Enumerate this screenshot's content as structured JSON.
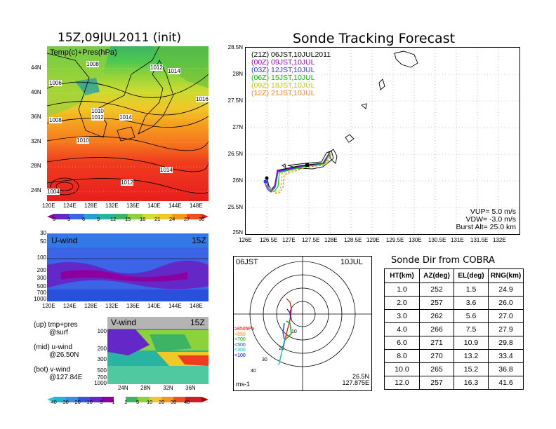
{
  "left_title": "15Z,09JUL2011 (init)",
  "main_title": "Sonde Tracking Forecast",
  "temp_panel": {
    "label": "Temp(c)+Pres(hPa)",
    "lat_ticks": [
      "44N",
      "40N",
      "36N",
      "32N",
      "28N",
      "24N"
    ],
    "lon_ticks": [
      "120E",
      "124E",
      "128E",
      "132E",
      "136E",
      "140E",
      "144E",
      "148E"
    ],
    "isobars": [
      "1008",
      "1006",
      "1012",
      "1014",
      "1016",
      "1010",
      "1012",
      "1008",
      "1010",
      "1014",
      "1014",
      "1012",
      "1004"
    ],
    "colorbar": [
      "0",
      "3",
      "6",
      "9",
      "12",
      "15",
      "18",
      "21",
      "24",
      "27",
      "30"
    ]
  },
  "u_panel": {
    "label": "U-wind",
    "time": "15Z",
    "p_ticks": [
      "30",
      "50",
      "100",
      "200",
      "300",
      "500",
      "700",
      "1000"
    ],
    "lon_ticks": [
      "120E",
      "124E",
      "128E",
      "132E",
      "136E",
      "140E",
      "144E",
      "148E"
    ]
  },
  "v_panel": {
    "label": "V-wind",
    "time": "15Z",
    "p_ticks": [
      "100",
      "200",
      "300",
      "500",
      "700",
      "1000"
    ],
    "lat_ticks": [
      "24N",
      "28N",
      "32N",
      "36N"
    ],
    "colorbar": [
      "-40",
      "-30",
      "-20",
      "-10",
      "-5",
      "-1",
      "1",
      "5",
      "10",
      "20",
      "30",
      "40"
    ]
  },
  "legend_notes": [
    {
      "line1": "(up) tmp+pres",
      "line2": "@surf"
    },
    {
      "line1": "(mid) u-wind",
      "line2": "@26.50N"
    },
    {
      "line1": "(bot) v-wind",
      "line2": "@127.84E"
    }
  ],
  "track_panel": {
    "legend": [
      {
        "code": "(21Z)",
        "text": "06JST,10JUL2011",
        "color": "#000000"
      },
      {
        "code": "(00Z)",
        "text": "09JST,10JUL",
        "color": "#a000c8"
      },
      {
        "code": "(03Z)",
        "text": "12JST,10JUL",
        "color": "#1e3cff"
      },
      {
        "code": "(06Z)",
        "text": "15JST,10JUL",
        "color": "#00c800"
      },
      {
        "code": "(09Z)",
        "text": "18JST,10JUL",
        "color": "#c8c800"
      },
      {
        "code": "(12Z)",
        "text": "21JST,10JUL",
        "color": "#f08228"
      }
    ],
    "params": [
      "VUP= 5.0 m/s",
      "VDW= -3.0 m/s",
      "Burst Alt= 25.0 km"
    ],
    "lat_ticks": [
      "28.5N",
      "28N",
      "27.5N",
      "27N",
      "26.5N",
      "26N",
      "25.5N",
      "25N"
    ],
    "lon_ticks": [
      "126E",
      "126.5E",
      "127E",
      "127.5E",
      "128E",
      "128.5E",
      "129E",
      "129.5E",
      "130E",
      "130.5E",
      "131E",
      "131.5E",
      "132E"
    ]
  },
  "hodo_panel": {
    "time": "06JST",
    "date": "10JUL",
    "levels": [
      "≥850hPa",
      "<850",
      "<700",
      "<500",
      "<300",
      "<100"
    ],
    "level_colors": [
      "#ff0000",
      "#ff8c00",
      "#00b400",
      "#1e3cff",
      "#00c8c8",
      "#0000c8"
    ],
    "units": "ms-1",
    "loc1": "26.5N",
    "loc2": "127.875E",
    "ring_labels": [
      "10",
      "20",
      "30",
      "40"
    ]
  },
  "chart_data": {
    "type": "table",
    "title": "Sonde Dir from COBRA",
    "columns": [
      "HT(km)",
      "AZ(deg)",
      "EL(deg)",
      "RNG(km)"
    ],
    "rows": [
      [
        "1.0",
        "252",
        "1.5",
        "24.9"
      ],
      [
        "2.0",
        "257",
        "3.6",
        "26.0"
      ],
      [
        "3.0",
        "262",
        "5.6",
        "27.0"
      ],
      [
        "4.0",
        "266",
        "7.5",
        "27.9"
      ],
      [
        "6.0",
        "271",
        "10.9",
        "29.8"
      ],
      [
        "8.0",
        "270",
        "13.2",
        "33.4"
      ],
      [
        "10.0",
        "265",
        "15.2",
        "36.8"
      ],
      [
        "12.0",
        "257",
        "16.3",
        "41.6"
      ]
    ]
  }
}
